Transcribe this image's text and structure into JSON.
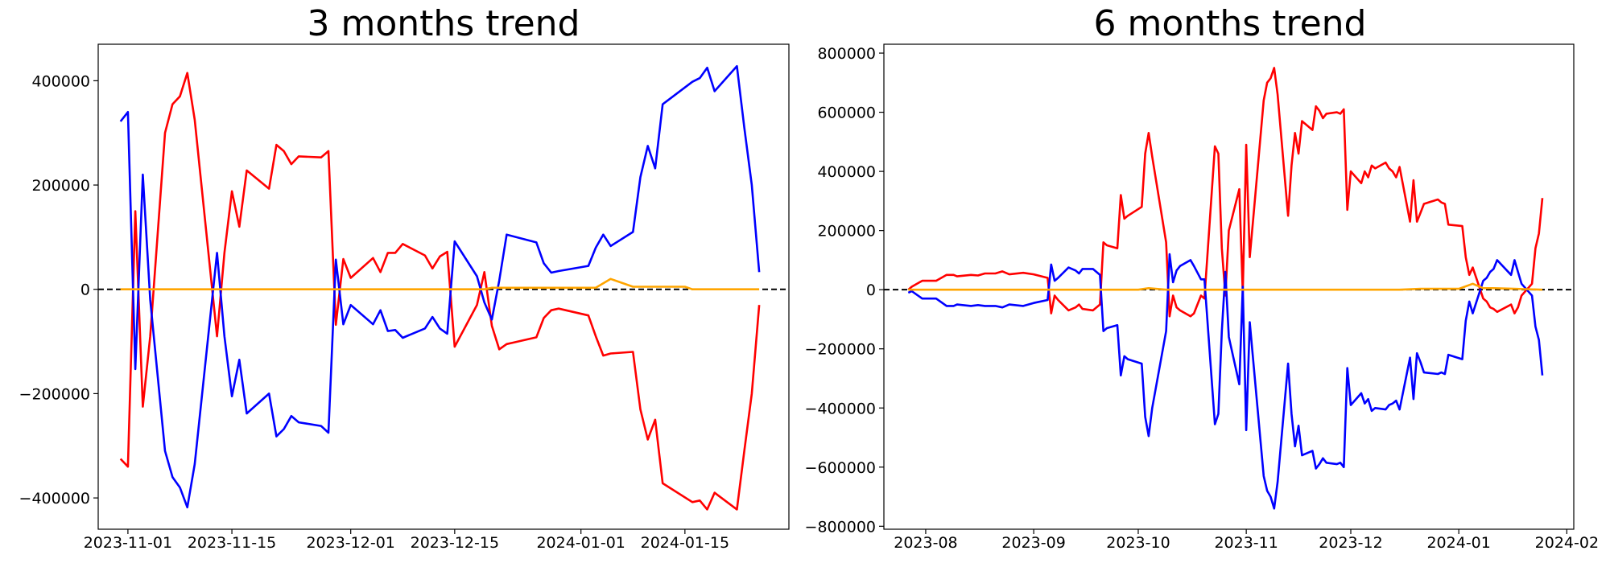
{
  "colors": {
    "red": "#ff0000",
    "blue": "#0000ff",
    "orange": "#ffa500",
    "zero_line": "#000000"
  },
  "chart_data": [
    {
      "type": "line",
      "title": "3 months trend",
      "xlabel": "",
      "ylabel": "",
      "x_axis": "date",
      "xlim": [
        "2023-10-28",
        "2024-01-29"
      ],
      "ylim": [
        -460000,
        470000
      ],
      "xticks": [
        "2023-11-01",
        "2023-11-15",
        "2023-12-01",
        "2023-12-15",
        "2024-01-01",
        "2024-01-15"
      ],
      "yticks": [
        -400000,
        -200000,
        0,
        200000,
        400000
      ],
      "grid": false,
      "reference_line": {
        "y": 0,
        "style": "dashed"
      },
      "series": [
        {
          "color": "red",
          "x": [
            "2023-10-31",
            "2023-11-01",
            "2023-11-02",
            "2023-11-03",
            "2023-11-04",
            "2023-11-06",
            "2023-11-07",
            "2023-11-08",
            "2023-11-09",
            "2023-11-10",
            "2023-11-13",
            "2023-11-14",
            "2023-11-15",
            "2023-11-16",
            "2023-11-17",
            "2023-11-20",
            "2023-11-21",
            "2023-11-22",
            "2023-11-23",
            "2023-11-24",
            "2023-11-27",
            "2023-11-28",
            "2023-11-29",
            "2023-11-30",
            "2023-12-01",
            "2023-12-04",
            "2023-12-05",
            "2023-12-06",
            "2023-12-07",
            "2023-12-08",
            "2023-12-11",
            "2023-12-12",
            "2023-12-13",
            "2023-12-14",
            "2023-12-15",
            "2023-12-18",
            "2023-12-19",
            "2023-12-20",
            "2023-12-21",
            "2023-12-22",
            "2023-12-26",
            "2023-12-27",
            "2023-12-28",
            "2023-12-29",
            "2024-01-02",
            "2024-01-03",
            "2024-01-04",
            "2024-01-05",
            "2024-01-08",
            "2024-01-09",
            "2024-01-10",
            "2024-01-11",
            "2024-01-12",
            "2024-01-16",
            "2024-01-17",
            "2024-01-18",
            "2024-01-19",
            "2024-01-22",
            "2024-01-23",
            "2024-01-24",
            "2024-01-25"
          ],
          "values": [
            -325000,
            -340000,
            150000,
            -225000,
            -90000,
            300000,
            355000,
            370000,
            415000,
            325000,
            -90000,
            70000,
            188000,
            120000,
            228000,
            193000,
            277000,
            265000,
            240000,
            255000,
            253000,
            265000,
            -68000,
            58000,
            22000,
            60000,
            33000,
            70000,
            70000,
            87000,
            65000,
            40000,
            63000,
            72000,
            -110000,
            -30000,
            33000,
            -70000,
            -115000,
            -105000,
            -92000,
            -55000,
            -40000,
            -37000,
            -50000,
            -90000,
            -127000,
            -123000,
            -120000,
            -230000,
            -288000,
            -250000,
            -372000,
            -408000,
            -405000,
            -422000,
            -390000,
            -422000,
            -310000,
            -200000,
            -30000
          ]
        },
        {
          "color": "blue",
          "x": [
            "2023-10-31",
            "2023-11-01",
            "2023-11-02",
            "2023-11-03",
            "2023-11-04",
            "2023-11-06",
            "2023-11-07",
            "2023-11-08",
            "2023-11-09",
            "2023-11-10",
            "2023-11-13",
            "2023-11-14",
            "2023-11-15",
            "2023-11-16",
            "2023-11-17",
            "2023-11-20",
            "2023-11-21",
            "2023-11-22",
            "2023-11-23",
            "2023-11-24",
            "2023-11-27",
            "2023-11-28",
            "2023-11-29",
            "2023-11-30",
            "2023-12-01",
            "2023-12-04",
            "2023-12-05",
            "2023-12-06",
            "2023-12-07",
            "2023-12-08",
            "2023-12-11",
            "2023-12-12",
            "2023-12-13",
            "2023-12-14",
            "2023-12-15",
            "2023-12-18",
            "2023-12-19",
            "2023-12-20",
            "2023-12-21",
            "2023-12-22",
            "2023-12-26",
            "2023-12-27",
            "2023-12-28",
            "2023-12-29",
            "2024-01-02",
            "2024-01-03",
            "2024-01-04",
            "2024-01-05",
            "2024-01-08",
            "2024-01-09",
            "2024-01-10",
            "2024-01-11",
            "2024-01-12",
            "2024-01-16",
            "2024-01-17",
            "2024-01-18",
            "2024-01-19",
            "2024-01-22",
            "2024-01-23",
            "2024-01-24",
            "2024-01-25"
          ],
          "values": [
            322000,
            340000,
            -153000,
            220000,
            -20000,
            -310000,
            -360000,
            -380000,
            -418000,
            -335000,
            70000,
            -90000,
            -205000,
            -135000,
            -238000,
            -200000,
            -282000,
            -268000,
            -243000,
            -255000,
            -262000,
            -275000,
            57000,
            -67000,
            -30000,
            -67000,
            -40000,
            -80000,
            -78000,
            -93000,
            -75000,
            -53000,
            -75000,
            -85000,
            92000,
            25000,
            -25000,
            -58000,
            17000,
            105000,
            90000,
            50000,
            32000,
            35000,
            45000,
            80000,
            105000,
            83000,
            110000,
            215000,
            275000,
            232000,
            355000,
            398000,
            405000,
            425000,
            380000,
            428000,
            310000,
            200000,
            33000
          ]
        },
        {
          "color": "orange",
          "x": [
            "2023-10-31",
            "2023-11-15",
            "2023-12-01",
            "2023-12-19",
            "2023-12-20",
            "2024-01-01",
            "2024-01-03",
            "2024-01-05",
            "2024-01-08",
            "2024-01-12",
            "2024-01-15",
            "2024-01-16",
            "2024-01-18",
            "2024-01-25"
          ],
          "values": [
            0,
            0,
            0,
            0,
            3000,
            3000,
            3000,
            20000,
            5000,
            5000,
            5000,
            0,
            0,
            0
          ]
        }
      ]
    },
    {
      "type": "line",
      "title": "6 months trend",
      "xlabel": "",
      "ylabel": "",
      "x_axis": "date",
      "xlim": [
        "2023-07-20",
        "2024-02-03"
      ],
      "ylim": [
        -810000,
        830000
      ],
      "xticks": [
        "2023-08",
        "2023-09",
        "2023-10",
        "2023-11",
        "2023-12",
        "2024-01",
        "2024-02"
      ],
      "xtick_dates": [
        "2023-08-01",
        "2023-09-01",
        "2023-10-01",
        "2023-11-01",
        "2023-12-01",
        "2024-01-01",
        "2024-02-01"
      ],
      "yticks": [
        -800000,
        -600000,
        -400000,
        -200000,
        0,
        200000,
        400000,
        600000,
        800000
      ],
      "grid": false,
      "reference_line": {
        "y": 0,
        "style": "dashed"
      },
      "series": [
        {
          "color": "red",
          "x": [
            "2023-07-27",
            "2023-07-28",
            "2023-07-31",
            "2023-08-03",
            "2023-08-04",
            "2023-08-07",
            "2023-08-09",
            "2023-08-10",
            "2023-08-14",
            "2023-08-16",
            "2023-08-18",
            "2023-08-21",
            "2023-08-23",
            "2023-08-25",
            "2023-08-29",
            "2023-09-01",
            "2023-09-05",
            "2023-09-06",
            "2023-09-07",
            "2023-09-08",
            "2023-09-11",
            "2023-09-13",
            "2023-09-14",
            "2023-09-15",
            "2023-09-18",
            "2023-09-20",
            "2023-09-21",
            "2023-09-22",
            "2023-09-25",
            "2023-09-26",
            "2023-09-27",
            "2023-09-28",
            "2023-10-02",
            "2023-10-03",
            "2023-10-04",
            "2023-10-05",
            "2023-10-09",
            "2023-10-10",
            "2023-10-11",
            "2023-10-12",
            "2023-10-13",
            "2023-10-16",
            "2023-10-17",
            "2023-10-19",
            "2023-10-20",
            "2023-10-23",
            "2023-10-24",
            "2023-10-25",
            "2023-10-26",
            "2023-10-27",
            "2023-10-30",
            "2023-10-31",
            "2023-11-01",
            "2023-11-02",
            "2023-11-03",
            "2023-11-06",
            "2023-11-07",
            "2023-11-08",
            "2023-11-09",
            "2023-11-10",
            "2023-11-13",
            "2023-11-14",
            "2023-11-15",
            "2023-11-16",
            "2023-11-17",
            "2023-11-20",
            "2023-11-21",
            "2023-11-22",
            "2023-11-23",
            "2023-11-24",
            "2023-11-27",
            "2023-11-28",
            "2023-11-29",
            "2023-11-30",
            "2023-12-01",
            "2023-12-04",
            "2023-12-05",
            "2023-12-06",
            "2023-12-07",
            "2023-12-08",
            "2023-12-11",
            "2023-12-12",
            "2023-12-13",
            "2023-12-14",
            "2023-12-15",
            "2023-12-18",
            "2023-12-19",
            "2023-12-20",
            "2023-12-21",
            "2023-12-22",
            "2023-12-26",
            "2023-12-27",
            "2023-12-28",
            "2023-12-29",
            "2024-01-02",
            "2024-01-03",
            "2024-01-04",
            "2024-01-05",
            "2024-01-08",
            "2024-01-09",
            "2024-01-10",
            "2024-01-11",
            "2024-01-12",
            "2024-01-16",
            "2024-01-17",
            "2024-01-18",
            "2024-01-19",
            "2024-01-22",
            "2024-01-23",
            "2024-01-24",
            "2024-01-25"
          ],
          "values": [
            0,
            10000,
            30000,
            30000,
            30000,
            50000,
            50000,
            45000,
            50000,
            48000,
            55000,
            55000,
            62000,
            52000,
            57000,
            52000,
            40000,
            -80000,
            -20000,
            -35000,
            -70000,
            -60000,
            -50000,
            -65000,
            -70000,
            -50000,
            160000,
            150000,
            140000,
            320000,
            240000,
            250000,
            280000,
            460000,
            530000,
            450000,
            160000,
            -90000,
            -20000,
            -60000,
            -70000,
            -90000,
            -80000,
            -20000,
            -30000,
            485000,
            460000,
            140000,
            -20000,
            200000,
            340000,
            -10000,
            490000,
            110000,
            240000,
            640000,
            700000,
            715000,
            750000,
            660000,
            250000,
            420000,
            530000,
            460000,
            570000,
            540000,
            620000,
            605000,
            580000,
            595000,
            600000,
            595000,
            610000,
            270000,
            400000,
            360000,
            400000,
            380000,
            420000,
            410000,
            430000,
            410000,
            400000,
            380000,
            415000,
            230000,
            370000,
            230000,
            260000,
            290000,
            305000,
            295000,
            290000,
            220000,
            215000,
            110000,
            50000,
            75000,
            -30000,
            -40000,
            -60000,
            -65000,
            -75000,
            -50000,
            -80000,
            -60000,
            -20000,
            20000,
            140000,
            190000,
            310000
          ]
        },
        {
          "color": "blue",
          "x": [
            "2023-07-27",
            "2023-07-28",
            "2023-07-31",
            "2023-08-03",
            "2023-08-04",
            "2023-08-07",
            "2023-08-09",
            "2023-08-10",
            "2023-08-14",
            "2023-08-16",
            "2023-08-18",
            "2023-08-21",
            "2023-08-23",
            "2023-08-25",
            "2023-08-29",
            "2023-09-01",
            "2023-09-05",
            "2023-09-06",
            "2023-09-07",
            "2023-09-08",
            "2023-09-11",
            "2023-09-13",
            "2023-09-14",
            "2023-09-15",
            "2023-09-18",
            "2023-09-20",
            "2023-09-21",
            "2023-09-22",
            "2023-09-25",
            "2023-09-26",
            "2023-09-27",
            "2023-09-28",
            "2023-10-02",
            "2023-10-03",
            "2023-10-04",
            "2023-10-05",
            "2023-10-09",
            "2023-10-10",
            "2023-10-11",
            "2023-10-12",
            "2023-10-13",
            "2023-10-16",
            "2023-10-17",
            "2023-10-19",
            "2023-10-20",
            "2023-10-23",
            "2023-10-24",
            "2023-10-25",
            "2023-10-26",
            "2023-10-27",
            "2023-10-30",
            "2023-10-31",
            "2023-11-01",
            "2023-11-02",
            "2023-11-03",
            "2023-11-06",
            "2023-11-07",
            "2023-11-08",
            "2023-11-09",
            "2023-11-10",
            "2023-11-13",
            "2023-11-14",
            "2023-11-15",
            "2023-11-16",
            "2023-11-17",
            "2023-11-20",
            "2023-11-21",
            "2023-11-22",
            "2023-11-23",
            "2023-11-24",
            "2023-11-27",
            "2023-11-28",
            "2023-11-29",
            "2023-11-30",
            "2023-12-01",
            "2023-12-04",
            "2023-12-05",
            "2023-12-06",
            "2023-12-07",
            "2023-12-08",
            "2023-12-11",
            "2023-12-12",
            "2023-12-13",
            "2023-12-14",
            "2023-12-15",
            "2023-12-18",
            "2023-12-19",
            "2023-12-20",
            "2023-12-21",
            "2023-12-22",
            "2023-12-26",
            "2023-12-27",
            "2023-12-28",
            "2023-12-29",
            "2024-01-02",
            "2024-01-03",
            "2024-01-04",
            "2024-01-05",
            "2024-01-08",
            "2024-01-09",
            "2024-01-10",
            "2024-01-11",
            "2024-01-12",
            "2024-01-16",
            "2024-01-17",
            "2024-01-18",
            "2024-01-19",
            "2024-01-22",
            "2024-01-23",
            "2024-01-24",
            "2024-01-25"
          ],
          "values": [
            -10000,
            -5000,
            -30000,
            -30000,
            -30000,
            -55000,
            -55000,
            -50000,
            -55000,
            -52000,
            -55000,
            -55000,
            -60000,
            -50000,
            -55000,
            -45000,
            -35000,
            85000,
            30000,
            40000,
            75000,
            65000,
            55000,
            70000,
            70000,
            50000,
            -140000,
            -130000,
            -120000,
            -290000,
            -225000,
            -235000,
            -250000,
            -430000,
            -495000,
            -400000,
            -140000,
            120000,
            25000,
            65000,
            80000,
            100000,
            80000,
            35000,
            35000,
            -455000,
            -420000,
            -140000,
            60000,
            -160000,
            -320000,
            10000,
            -475000,
            -110000,
            -240000,
            -630000,
            -680000,
            -700000,
            -740000,
            -650000,
            -250000,
            -420000,
            -530000,
            -460000,
            -560000,
            -545000,
            -605000,
            -590000,
            -570000,
            -585000,
            -590000,
            -585000,
            -600000,
            -265000,
            -390000,
            -350000,
            -385000,
            -370000,
            -410000,
            -400000,
            -405000,
            -390000,
            -385000,
            -375000,
            -405000,
            -230000,
            -370000,
            -215000,
            -245000,
            -280000,
            -285000,
            -280000,
            -285000,
            -220000,
            -235000,
            -105000,
            -40000,
            -80000,
            30000,
            40000,
            60000,
            70000,
            100000,
            50000,
            100000,
            60000,
            20000,
            -20000,
            -125000,
            -170000,
            -290000
          ]
        },
        {
          "color": "orange",
          "x": [
            "2023-07-27",
            "2023-10-01",
            "2023-10-04",
            "2023-10-09",
            "2023-12-15",
            "2023-12-21",
            "2024-01-01",
            "2024-01-05",
            "2024-01-08",
            "2024-01-11",
            "2024-01-17",
            "2024-01-25"
          ],
          "values": [
            0,
            0,
            5000,
            0,
            0,
            3000,
            3000,
            20000,
            5000,
            5000,
            3000,
            0
          ]
        }
      ]
    }
  ]
}
